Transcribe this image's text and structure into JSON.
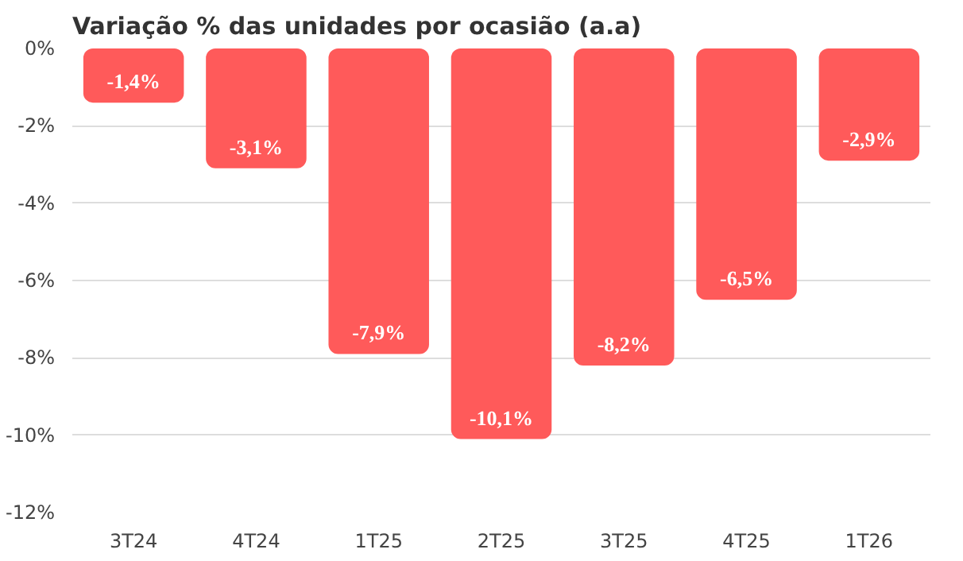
{
  "chart_data": {
    "type": "bar",
    "title": "Variação % das unidades por ocasião (a.a)",
    "categories": [
      "3T24",
      "4T24",
      "1T25",
      "2T25",
      "3T25",
      "4T25",
      "1T26"
    ],
    "values": [
      -1.4,
      -3.1,
      -7.9,
      -10.1,
      -8.2,
      -6.5,
      -2.9
    ],
    "value_labels": [
      "-1,4%",
      "-3,1%",
      "-7,9%",
      "-10,1%",
      "-8,2%",
      "-6,5%",
      "-2,9%"
    ],
    "color": "#ff5a5a",
    "ylim": [
      -12,
      0
    ],
    "yticks": [
      {
        "value": 0,
        "label": "0%"
      },
      {
        "value": -2,
        "label": "-2%"
      },
      {
        "value": -4,
        "label": "-4%"
      },
      {
        "value": -6,
        "label": "-6%"
      },
      {
        "value": -8,
        "label": "-8%"
      },
      {
        "value": -10,
        "label": "-10%"
      },
      {
        "value": -12,
        "label": "-12%"
      }
    ],
    "grid": "y"
  }
}
